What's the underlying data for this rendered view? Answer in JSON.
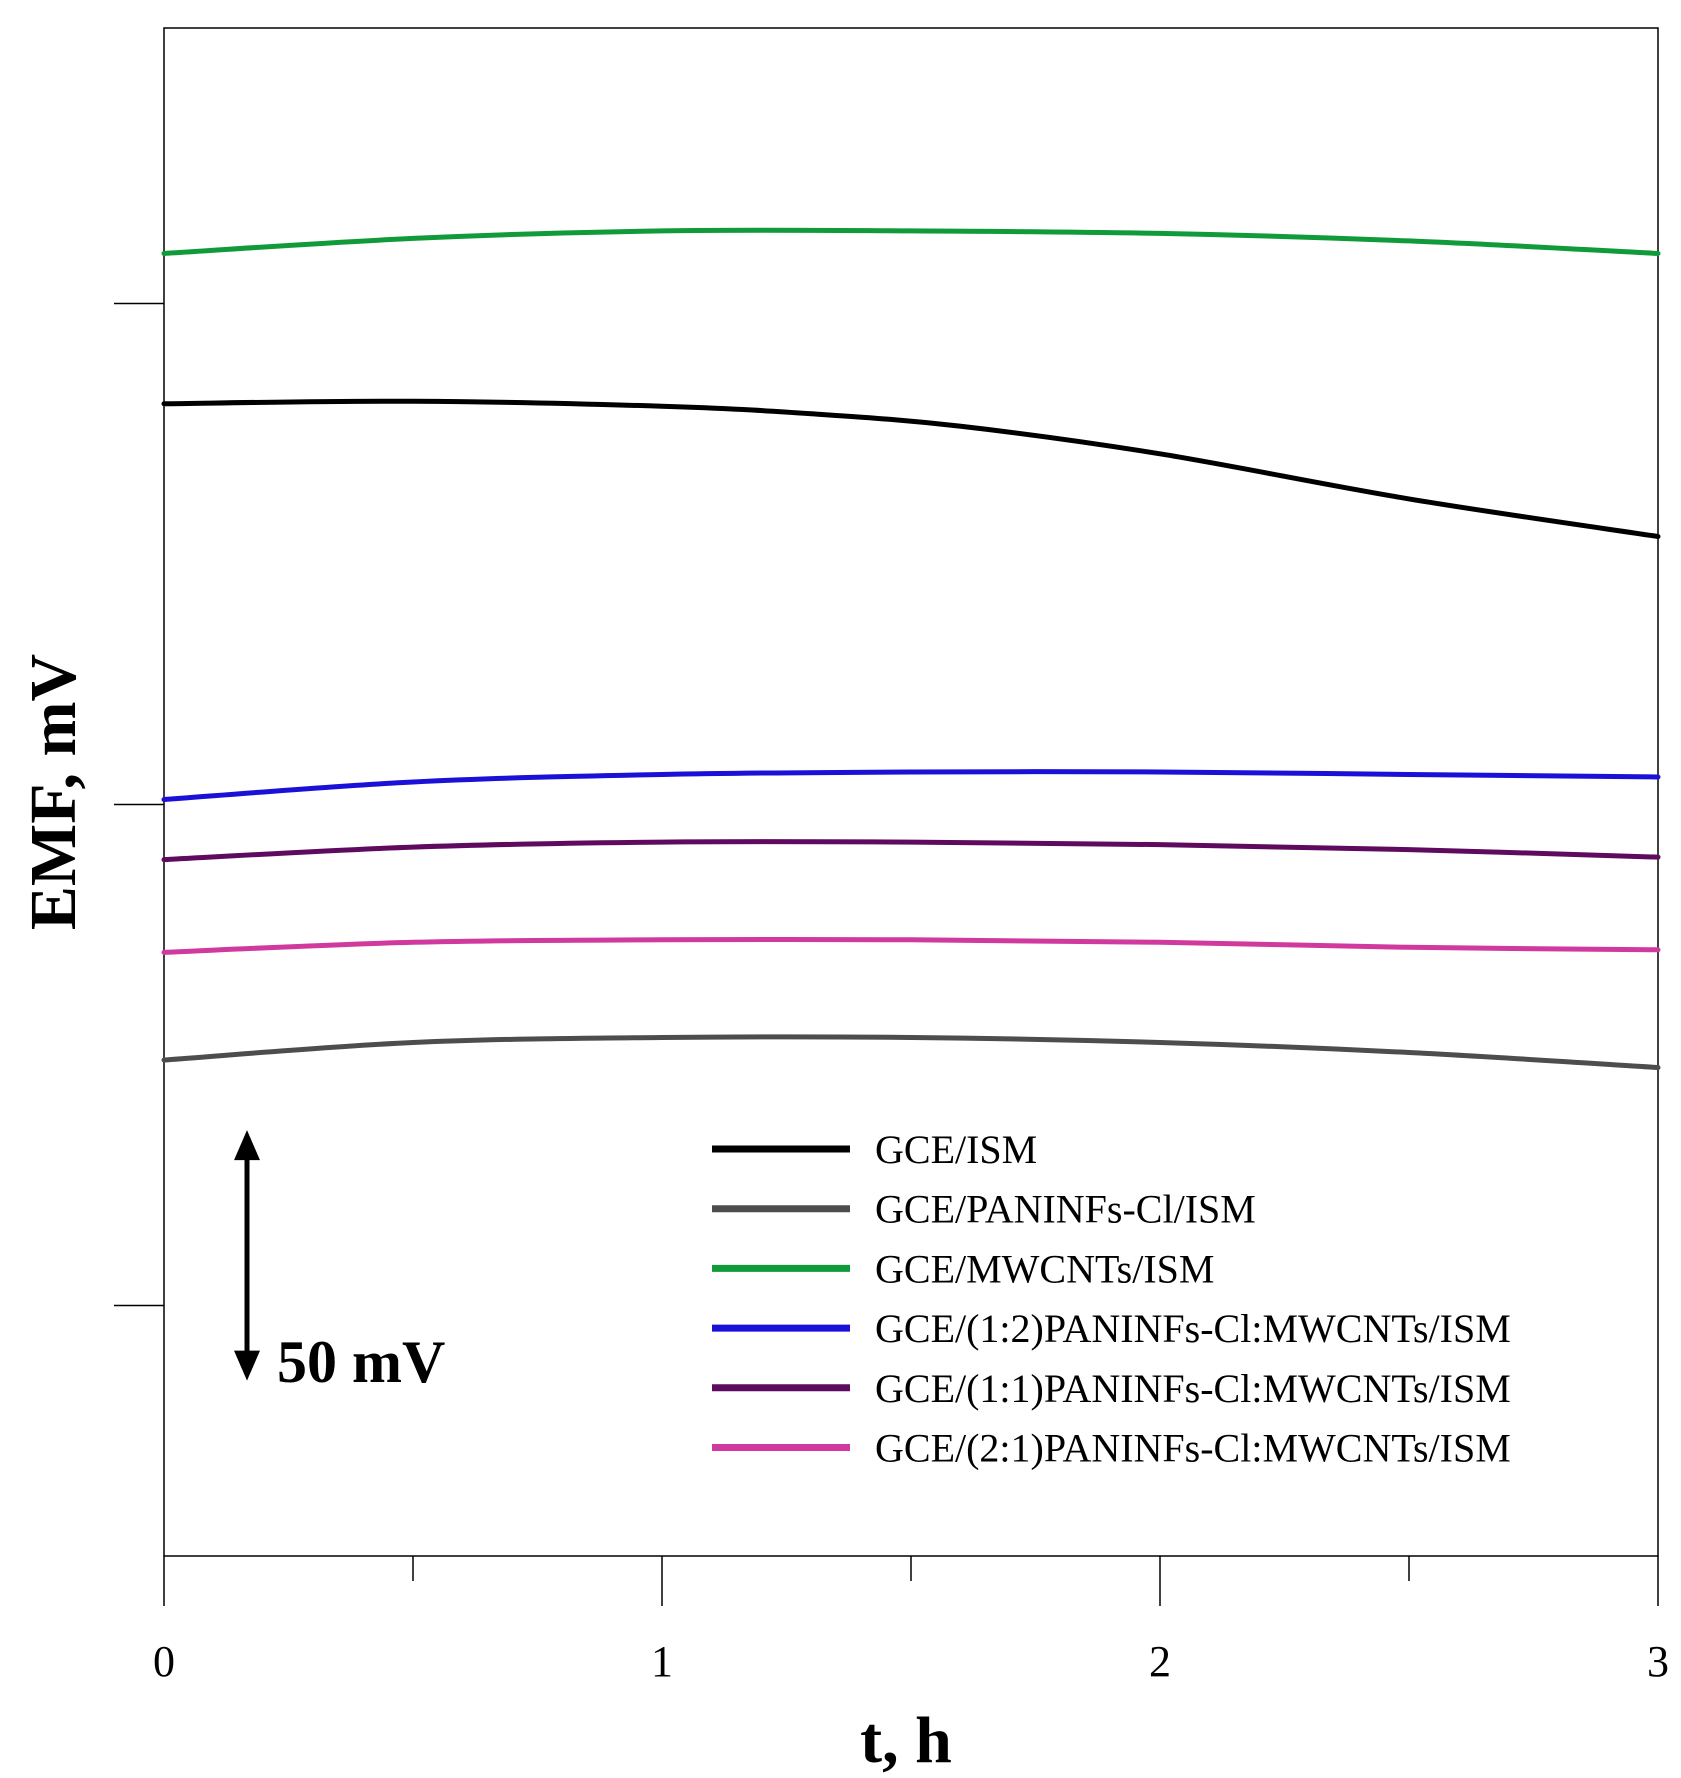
{
  "chart_data": {
    "type": "line",
    "title": "",
    "xlabel": "t, h",
    "ylabel": "EMF, mV",
    "xlim": [
      0,
      3
    ],
    "ylim": [
      -105,
      200
    ],
    "x_ticks_major": [
      0,
      1,
      2,
      3
    ],
    "x_tick_labels": [
      "0",
      "1",
      "2",
      "3"
    ],
    "x_ticks_minor": [
      0.5,
      1.5,
      2.5
    ],
    "y_ticks": [
      -55,
      45,
      145
    ],
    "y_tick_labels": [],
    "scale_bar": {
      "label": "50 mV",
      "from": -70,
      "to": -20
    },
    "legend_position": "bottom-right",
    "series": [
      {
        "name": "GCE/ISM",
        "color": "#000000",
        "x": [
          0,
          0.5,
          1,
          1.3,
          1.6,
          2,
          2.5,
          3
        ],
        "y": [
          125,
          125.5,
          124.5,
          123,
          120.5,
          115,
          106,
          98.5
        ]
      },
      {
        "name": "GCE/PANINFs-Cl/ISM",
        "color": "#4d4d4d",
        "x": [
          0,
          0.5,
          1,
          1.5,
          2,
          2.5,
          3
        ],
        "y": [
          -6,
          -2.5,
          -1.5,
          -1.5,
          -2.5,
          -4.5,
          -7.5
        ]
      },
      {
        "name": "GCE/MWCNTs/ISM",
        "color": "#109a3a",
        "x": [
          0,
          0.5,
          1,
          1.5,
          2,
          2.5,
          3
        ],
        "y": [
          155,
          158,
          159.5,
          159.5,
          159,
          157.5,
          155
        ]
      },
      {
        "name": "GCE/(1:2)PANINFs-Cl:MWCNTs/ISM",
        "color": "#1a10d8",
        "x": [
          0,
          0.5,
          1,
          1.5,
          2,
          2.5,
          3
        ],
        "y": [
          46,
          49.5,
          51,
          51.5,
          51.5,
          51,
          50.5
        ]
      },
      {
        "name": "GCE/(1:1)PANINFs-Cl:MWCNTs/ISM",
        "color": "#5e0a5e",
        "x": [
          0,
          0.5,
          1,
          1.5,
          2,
          2.5,
          3
        ],
        "y": [
          34,
          36.5,
          37.5,
          37.5,
          37,
          36,
          34.5
        ]
      },
      {
        "name": "GCE/(2:1)PANINFs-Cl:MWCNTs/ISM",
        "color": "#d03a9e",
        "x": [
          0,
          0.5,
          1,
          1.5,
          2,
          2.5,
          3
        ],
        "y": [
          15.5,
          17.5,
          18,
          18,
          17.5,
          16.5,
          16
        ]
      }
    ]
  }
}
